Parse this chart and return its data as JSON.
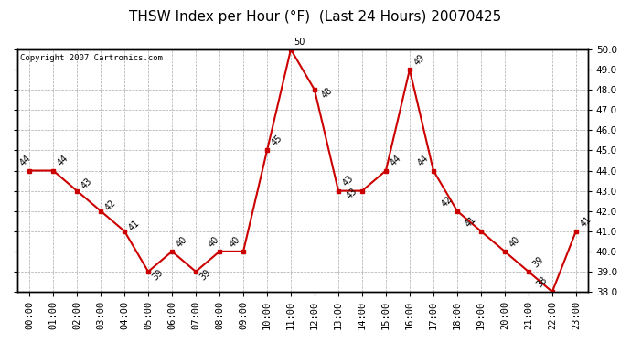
{
  "title": "THSW Index per Hour (°F)  (Last 24 Hours) 20070425",
  "copyright": "Copyright 2007 Cartronics.com",
  "hours": [
    "00:00",
    "01:00",
    "02:00",
    "03:00",
    "04:00",
    "05:00",
    "06:00",
    "07:00",
    "08:00",
    "09:00",
    "10:00",
    "11:00",
    "12:00",
    "13:00",
    "14:00",
    "15:00",
    "16:00",
    "17:00",
    "18:00",
    "19:00",
    "20:00",
    "21:00",
    "22:00",
    "23:00"
  ],
  "values": [
    44,
    44,
    43,
    42,
    41,
    39,
    40,
    39,
    40,
    40,
    45,
    50,
    48,
    43,
    43,
    44,
    49,
    44,
    42,
    41,
    40,
    39,
    38,
    41
  ],
  "ylim": [
    38.0,
    50.0
  ],
  "yticks": [
    38.0,
    39.0,
    40.0,
    41.0,
    42.0,
    43.0,
    44.0,
    45.0,
    46.0,
    47.0,
    48.0,
    49.0,
    50.0
  ],
  "line_color": "#cc0000",
  "marker_color": "#cc0000",
  "bg_color": "#ffffff",
  "grid_color": "#aaaaaa",
  "title_fontsize": 11,
  "tick_fontsize": 7.5,
  "copyright_fontsize": 6.5,
  "annot_fontsize": 7
}
